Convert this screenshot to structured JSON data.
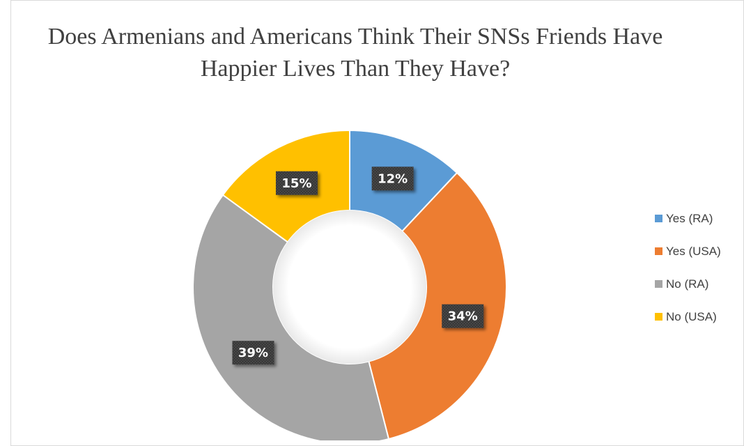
{
  "chart_data": {
    "type": "pie",
    "title": "Does Armenians and Americans Think Their SNSs Friends Have Happier Lives Than They Have?",
    "categories": [
      "Yes (RA)",
      "Yes (USA)",
      "No (RA)",
      "No (USA)"
    ],
    "values": [
      12,
      34,
      39,
      15
    ],
    "labels": [
      "12%",
      "34%",
      "39%",
      "15%"
    ],
    "colors": [
      "#5b9bd5",
      "#ed7d31",
      "#a5a5a5",
      "#ffc000"
    ],
    "donut": true,
    "legend_position": "right"
  }
}
